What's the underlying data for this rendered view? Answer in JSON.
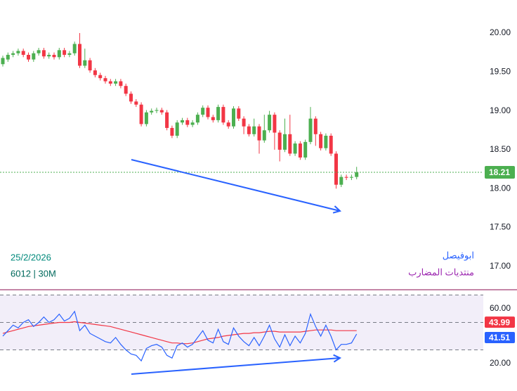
{
  "chart_data": [
    {
      "type": "candlestick",
      "date": "25/2/2026",
      "symbol_info": "6012 | 30M",
      "watermark_name": "ابوفيصل",
      "watermark_forum": "منتديات المضارب",
      "up_color": "#4caf50",
      "down_color": "#f23645",
      "open": [
        19.6,
        19.66,
        19.72,
        19.74,
        19.77,
        19.72,
        19.66,
        19.74,
        19.78,
        19.7,
        19.72,
        19.69,
        19.78,
        19.72,
        19.74,
        19.86,
        19.58,
        19.65,
        19.52,
        19.46,
        19.42,
        19.38,
        19.35,
        19.38,
        19.32,
        19.22,
        19.12,
        19.08,
        18.83,
        18.98,
        19.0,
        19.01,
        18.98,
        18.78,
        18.68,
        18.85,
        18.88,
        18.82,
        18.85,
        18.95,
        19.04,
        18.92,
        18.88,
        19.05,
        18.85,
        18.8,
        19.03,
        18.9,
        18.8,
        18.7,
        18.8,
        18.62,
        18.75,
        18.95,
        18.72,
        18.5,
        18.7,
        18.45,
        18.58,
        18.4,
        18.6,
        18.9,
        18.7,
        18.52,
        18.68,
        18.45,
        18.05,
        18.15,
        18.14,
        18.15
      ],
      "high": [
        19.71,
        19.75,
        19.77,
        19.8,
        19.8,
        19.75,
        19.77,
        19.81,
        19.81,
        19.75,
        19.75,
        19.81,
        19.81,
        19.77,
        19.89,
        20.0,
        19.8,
        19.68,
        19.55,
        19.49,
        19.45,
        19.41,
        19.41,
        19.41,
        19.35,
        19.25,
        19.15,
        19.11,
        19.01,
        19.03,
        19.04,
        19.04,
        19.01,
        18.81,
        18.88,
        18.91,
        18.91,
        18.88,
        18.98,
        19.07,
        19.07,
        18.95,
        19.08,
        19.08,
        18.88,
        19.06,
        19.06,
        18.93,
        18.83,
        18.9,
        18.83,
        18.95,
        19.0,
        18.98,
        18.75,
        18.9,
        18.95,
        18.61,
        18.61,
        18.63,
        19.05,
        18.93,
        18.73,
        18.71,
        18.71,
        18.48,
        18.18,
        18.18,
        18.18,
        18.28
      ],
      "low": [
        19.57,
        19.63,
        19.69,
        19.71,
        19.69,
        19.63,
        19.63,
        19.71,
        19.67,
        19.67,
        19.66,
        19.66,
        19.69,
        19.69,
        19.71,
        19.55,
        19.55,
        19.49,
        19.43,
        19.39,
        19.35,
        19.32,
        19.32,
        19.29,
        19.19,
        19.09,
        19.05,
        18.8,
        18.8,
        18.95,
        18.97,
        18.95,
        18.75,
        18.65,
        18.65,
        18.82,
        18.79,
        18.79,
        18.82,
        18.92,
        18.89,
        18.85,
        18.85,
        18.82,
        18.77,
        18.77,
        18.87,
        18.7,
        18.67,
        18.67,
        18.45,
        18.59,
        18.72,
        18.5,
        18.35,
        18.47,
        18.42,
        18.42,
        18.37,
        18.37,
        18.57,
        18.55,
        18.49,
        18.49,
        18.42,
        18.0,
        18.02,
        18.11,
        18.11,
        18.12
      ],
      "close": [
        19.68,
        19.72,
        19.74,
        19.77,
        19.72,
        19.66,
        19.74,
        19.78,
        19.7,
        19.72,
        19.69,
        19.78,
        19.72,
        19.74,
        19.86,
        19.58,
        19.65,
        19.52,
        19.46,
        19.42,
        19.38,
        19.35,
        19.38,
        19.32,
        19.22,
        19.12,
        19.08,
        18.83,
        18.98,
        19.0,
        19.01,
        18.98,
        18.78,
        18.68,
        18.85,
        18.88,
        18.82,
        18.85,
        18.95,
        19.04,
        18.92,
        18.88,
        19.05,
        18.85,
        18.8,
        19.03,
        18.9,
        18.8,
        18.7,
        18.8,
        18.62,
        18.75,
        18.95,
        18.72,
        18.5,
        18.7,
        18.45,
        18.58,
        18.4,
        18.6,
        18.9,
        18.7,
        18.52,
        18.68,
        18.45,
        18.05,
        18.15,
        18.14,
        18.15,
        18.21
      ],
      "ylim": [
        16.7,
        20.425
      ],
      "yticks": [
        {
          "value": 17,
          "label": "17.00"
        },
        {
          "value": 17.5,
          "label": "17.50"
        },
        {
          "value": 18,
          "label": "18.00"
        },
        {
          "value": 18.5,
          "label": "18.50"
        },
        {
          "value": 19,
          "label": "19.00"
        },
        {
          "value": 19.5,
          "label": "19.50"
        },
        {
          "value": 20,
          "label": "20.00"
        }
      ]
    },
    {
      "type": "line",
      "levels": [
        70,
        50,
        30
      ],
      "series": [
        {
          "color": "#f23645",
          "values": [
            42,
            43,
            44,
            45,
            46,
            47,
            47.5,
            48,
            48.5,
            49,
            49.5,
            50,
            50,
            50,
            50.5,
            50,
            49.5,
            49,
            48.5,
            48,
            47.5,
            47,
            46,
            45,
            44,
            43,
            42,
            41,
            40,
            39,
            38,
            37,
            36,
            35,
            35,
            34.5,
            34.5,
            35,
            36,
            37,
            38,
            38.5,
            39,
            40,
            40.5,
            41,
            41.5,
            42,
            42,
            42.5,
            42.5,
            43,
            43.5,
            43.5,
            43,
            43,
            43,
            43,
            43,
            43.5,
            44,
            44.5,
            44.5,
            44.5,
            44.5,
            44,
            44,
            44,
            44,
            43.99
          ]
        },
        {
          "color": "#2962ff",
          "values": [
            40,
            44,
            48,
            46,
            50,
            52,
            47,
            50,
            54,
            50,
            52,
            56,
            51,
            53,
            58,
            44,
            48,
            42,
            40,
            38,
            36,
            35,
            39,
            34,
            30,
            27,
            26,
            22,
            31,
            33,
            34,
            32,
            26,
            24,
            33,
            35,
            32,
            34,
            39,
            44,
            37,
            35,
            45,
            36,
            34,
            46,
            40,
            36,
            33,
            39,
            33,
            40,
            48,
            38,
            32,
            41,
            33,
            40,
            35,
            42,
            56,
            47,
            40,
            48,
            40,
            30,
            34,
            34,
            35,
            41.51
          ]
        }
      ],
      "ylim": [
        2.56,
        73.3
      ],
      "yticks": [
        {
          "value": 20,
          "label": "20.00"
        },
        {
          "value": 60,
          "label": "60.00"
        }
      ]
    }
  ]
}
